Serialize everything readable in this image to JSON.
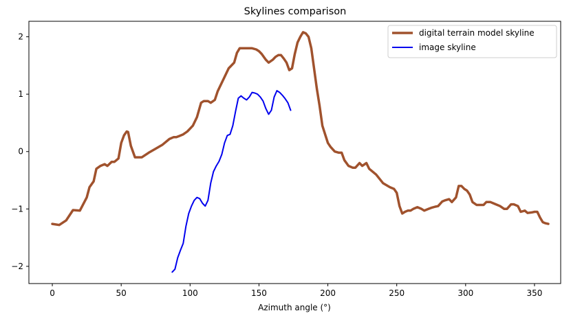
{
  "chart_data": {
    "type": "line",
    "title": "Skylines comparison",
    "xlabel": "Azimuth angle (°)",
    "ylabel": "",
    "xlim": [
      -17,
      369
    ],
    "ylim": [
      -2.3,
      2.27
    ],
    "xticks": [
      0,
      50,
      100,
      150,
      200,
      250,
      300,
      350
    ],
    "yticks": [
      -2,
      -1,
      0,
      1,
      2
    ],
    "xtick_labels": [
      "0",
      "50",
      "100",
      "150",
      "200",
      "250",
      "300",
      "350"
    ],
    "ytick_labels": [
      "−2",
      "−1",
      "0",
      "1",
      "2"
    ],
    "grid": false,
    "legend_position": "upper-right",
    "series": [
      {
        "name": "digital terrain model skyline",
        "color": "#a0522d",
        "x": [
          0,
          5,
          10,
          15,
          20,
          25,
          27,
          30,
          32,
          35,
          38,
          40,
          43,
          45,
          48,
          50,
          52,
          54,
          55,
          57,
          60,
          65,
          70,
          75,
          80,
          85,
          88,
          90,
          92,
          95,
          98,
          100,
          102,
          105,
          108,
          110,
          113,
          115,
          118,
          120,
          122,
          125,
          128,
          130,
          132,
          134,
          136,
          138,
          140,
          142,
          145,
          148,
          150,
          152,
          155,
          157,
          160,
          162,
          164,
          166,
          168,
          170,
          172,
          174,
          176,
          178,
          180,
          182,
          184,
          186,
          188,
          190,
          192,
          194,
          196,
          198,
          200,
          202,
          205,
          208,
          210,
          212,
          215,
          218,
          220,
          223,
          225,
          228,
          230,
          235,
          240,
          245,
          248,
          250,
          252,
          254,
          256,
          258,
          260,
          262,
          265,
          268,
          270,
          273,
          275,
          278,
          280,
          283,
          285,
          288,
          290,
          293,
          295,
          297,
          299,
          301,
          303,
          305,
          308,
          310,
          313,
          315,
          318,
          320,
          323,
          325,
          328,
          330,
          333,
          335,
          338,
          340,
          343,
          345,
          348,
          350,
          352,
          354,
          356,
          358,
          360
        ],
        "y": [
          -1.26,
          -1.28,
          -1.2,
          -1.02,
          -1.03,
          -0.8,
          -0.62,
          -0.52,
          -0.3,
          -0.25,
          -0.22,
          -0.25,
          -0.18,
          -0.18,
          -0.12,
          0.15,
          0.28,
          0.35,
          0.34,
          0.1,
          -0.1,
          -0.1,
          -0.02,
          0.05,
          0.12,
          0.22,
          0.25,
          0.25,
          0.27,
          0.3,
          0.35,
          0.4,
          0.45,
          0.6,
          0.85,
          0.88,
          0.88,
          0.85,
          0.9,
          1.05,
          1.15,
          1.3,
          1.45,
          1.5,
          1.55,
          1.72,
          1.8,
          1.8,
          1.8,
          1.8,
          1.8,
          1.78,
          1.75,
          1.7,
          1.6,
          1.55,
          1.6,
          1.65,
          1.68,
          1.68,
          1.62,
          1.55,
          1.42,
          1.45,
          1.7,
          1.9,
          2.0,
          2.08,
          2.06,
          2.0,
          1.8,
          1.45,
          1.1,
          0.8,
          0.45,
          0.3,
          0.15,
          0.08,
          0.0,
          -0.02,
          -0.02,
          -0.15,
          -0.25,
          -0.28,
          -0.28,
          -0.2,
          -0.25,
          -0.2,
          -0.3,
          -0.4,
          -0.55,
          -0.62,
          -0.65,
          -0.72,
          -0.95,
          -1.08,
          -1.05,
          -1.03,
          -1.03,
          -1.0,
          -0.97,
          -1.0,
          -1.03,
          -1.0,
          -0.98,
          -0.96,
          -0.95,
          -0.87,
          -0.85,
          -0.83,
          -0.88,
          -0.8,
          -0.6,
          -0.6,
          -0.65,
          -0.68,
          -0.75,
          -0.88,
          -0.93,
          -0.93,
          -0.93,
          -0.88,
          -0.88,
          -0.9,
          -0.93,
          -0.95,
          -1.0,
          -1.0,
          -0.92,
          -0.92,
          -0.95,
          -1.05,
          -1.03,
          -1.07,
          -1.06,
          -1.05,
          -1.05,
          -1.15,
          -1.23,
          -1.25,
          -1.26
        ]
      },
      {
        "name": "image skyline",
        "color": "#0000ee",
        "x": [
          87,
          89,
          91,
          93,
          95,
          97,
          99,
          101,
          103,
          105,
          107,
          109,
          111,
          113,
          115,
          117,
          119,
          121,
          123,
          125,
          127,
          129,
          131,
          133,
          135,
          137,
          139,
          141,
          143,
          145,
          147,
          149,
          151,
          153,
          155,
          157,
          159,
          161,
          163,
          165,
          167,
          169,
          171,
          173
        ],
        "y": [
          -2.1,
          -2.05,
          -1.85,
          -1.72,
          -1.6,
          -1.3,
          -1.08,
          -0.95,
          -0.85,
          -0.8,
          -0.82,
          -0.9,
          -0.95,
          -0.85,
          -0.55,
          -0.35,
          -0.25,
          -0.17,
          -0.05,
          0.15,
          0.28,
          0.3,
          0.45,
          0.7,
          0.93,
          0.97,
          0.93,
          0.9,
          0.95,
          1.03,
          1.02,
          1.0,
          0.95,
          0.88,
          0.75,
          0.65,
          0.72,
          0.95,
          1.06,
          1.03,
          0.98,
          0.92,
          0.85,
          0.72
        ]
      }
    ]
  }
}
